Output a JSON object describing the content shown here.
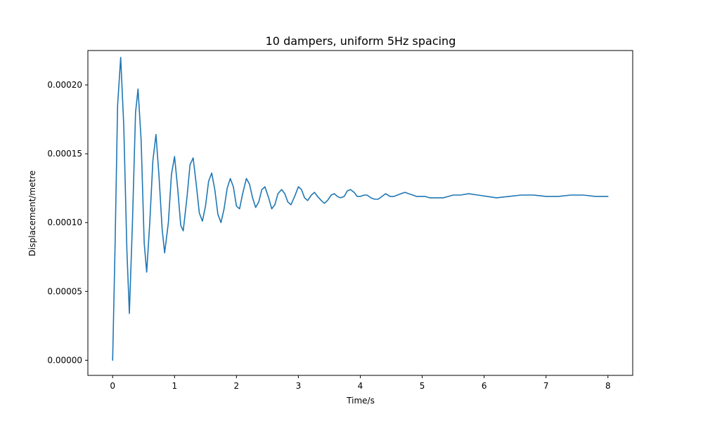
{
  "chart_data": {
    "type": "line",
    "title": "10 dampers, uniform 5Hz spacing",
    "xlabel": "Time/s",
    "ylabel": "Displacement/metre",
    "xlim": [
      -0.4,
      8.4
    ],
    "ylim": [
      -1.1e-05,
      0.000225
    ],
    "x_ticks": [
      0,
      1,
      2,
      3,
      4,
      5,
      6,
      7,
      8
    ],
    "x_tick_labels": [
      "0",
      "1",
      "2",
      "3",
      "4",
      "5",
      "6",
      "7",
      "8"
    ],
    "y_ticks": [
      0.0,
      5e-05,
      0.0001,
      0.00015,
      0.0002
    ],
    "y_tick_labels": [
      "0.00000",
      "0.00005",
      "0.00010",
      "0.00015",
      "0.00020"
    ],
    "grid": false,
    "series": [
      {
        "color": "#1f77b4",
        "x": [
          0.0,
          0.04,
          0.08,
          0.13,
          0.18,
          0.23,
          0.27,
          0.32,
          0.37,
          0.41,
          0.46,
          0.51,
          0.55,
          0.6,
          0.65,
          0.7,
          0.75,
          0.8,
          0.84,
          0.9,
          0.95,
          1.0,
          1.05,
          1.1,
          1.14,
          1.2,
          1.25,
          1.3,
          1.35,
          1.4,
          1.45,
          1.5,
          1.55,
          1.6,
          1.65,
          1.7,
          1.75,
          1.8,
          1.85,
          1.9,
          1.95,
          2.0,
          2.05,
          2.1,
          2.16,
          2.21,
          2.26,
          2.31,
          2.36,
          2.41,
          2.46,
          2.52,
          2.57,
          2.62,
          2.67,
          2.73,
          2.78,
          2.83,
          2.88,
          2.94,
          3.0,
          3.05,
          3.1,
          3.15,
          3.21,
          3.26,
          3.31,
          3.37,
          3.42,
          3.47,
          3.53,
          3.58,
          3.63,
          3.68,
          3.74,
          3.79,
          3.84,
          3.9,
          3.95,
          4.0,
          4.06,
          4.11,
          4.17,
          4.23,
          4.29,
          4.35,
          4.41,
          4.48,
          4.54,
          4.6,
          4.66,
          4.72,
          4.78,
          4.85,
          4.91,
          4.98,
          5.05,
          5.12,
          5.19,
          5.26,
          5.34,
          5.42,
          5.5,
          5.62,
          5.75,
          5.9,
          6.05,
          6.2,
          6.4,
          6.6,
          6.8,
          7.0,
          7.2,
          7.4,
          7.6,
          7.8,
          8.0
        ],
        "y": [
          0.0,
          8.5e-05,
          0.000185,
          0.00022,
          0.00017,
          8e-05,
          3.4e-05,
          0.0001,
          0.00018,
          0.000197,
          0.00016,
          8.5e-05,
          6.4e-05,
          0.0001,
          0.000145,
          0.000164,
          0.000133,
          9.5e-05,
          7.8e-05,
          0.0001,
          0.000135,
          0.000148,
          0.000125,
          9.8e-05,
          9.4e-05,
          0.000118,
          0.000142,
          0.000147,
          0.000128,
          0.000107,
          0.000101,
          0.000112,
          0.00013,
          0.000136,
          0.000124,
          0.000106,
          0.0001,
          0.00011,
          0.000125,
          0.000132,
          0.000126,
          0.000112,
          0.00011,
          0.000121,
          0.000132,
          0.000128,
          0.000118,
          0.000111,
          0.000115,
          0.000124,
          0.000126,
          0.000118,
          0.00011,
          0.000113,
          0.000121,
          0.000124,
          0.000121,
          0.000115,
          0.000113,
          0.000119,
          0.000126,
          0.000124,
          0.000118,
          0.000116,
          0.00012,
          0.000122,
          0.000119,
          0.000116,
          0.000114,
          0.000116,
          0.00012,
          0.000121,
          0.000119,
          0.000118,
          0.000119,
          0.000123,
          0.000124,
          0.000122,
          0.000119,
          0.000119,
          0.00012,
          0.00012,
          0.000118,
          0.000117,
          0.000117,
          0.000119,
          0.000121,
          0.000119,
          0.000119,
          0.00012,
          0.000121,
          0.000122,
          0.000121,
          0.00012,
          0.000119,
          0.000119,
          0.000119,
          0.000118,
          0.000118,
          0.000118,
          0.000118,
          0.000119,
          0.00012,
          0.00012,
          0.000121,
          0.00012,
          0.000119,
          0.000118,
          0.000119,
          0.00012,
          0.00012,
          0.000119,
          0.000119,
          0.00012,
          0.00012,
          0.000119,
          0.000119
        ]
      }
    ]
  }
}
